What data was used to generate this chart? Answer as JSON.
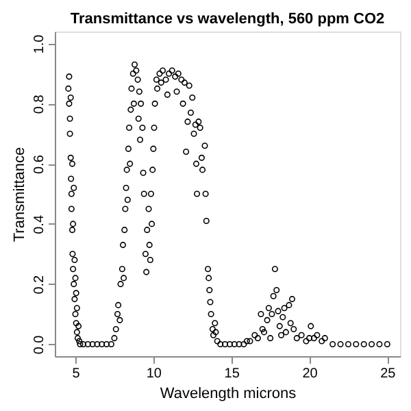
{
  "chart_data": {
    "type": "scatter",
    "title": "Transmittance vs wavelength, 560 ppm CO2",
    "xlabel": "Wavelength microns",
    "ylabel": "Transmittance",
    "x": [
      4.55,
      4.6,
      4.6,
      4.65,
      4.65,
      4.7,
      4.7,
      4.72,
      4.75,
      4.75,
      4.8,
      4.8,
      4.82,
      4.85,
      4.85,
      4.9,
      4.9,
      4.95,
      4.95,
      5.0,
      5.0,
      5.05,
      5.05,
      5.1,
      5.1,
      5.15,
      5.2,
      5.25,
      5.3,
      5.5,
      5.8,
      6.1,
      6.4,
      6.7,
      7.0,
      7.3,
      7.5,
      7.6,
      7.7,
      7.75,
      7.85,
      7.9,
      8.0,
      8.05,
      8.1,
      8.15,
      8.2,
      8.25,
      8.3,
      8.35,
      8.4,
      8.45,
      8.5,
      8.55,
      8.6,
      8.7,
      8.75,
      8.8,
      8.9,
      9.0,
      9.05,
      9.1,
      9.15,
      9.2,
      9.3,
      9.35,
      9.4,
      9.5,
      9.55,
      9.6,
      9.7,
      9.75,
      9.8,
      9.85,
      9.9,
      9.95,
      10.0,
      10.05,
      10.1,
      10.2,
      10.25,
      10.4,
      10.5,
      10.6,
      10.8,
      10.9,
      11.0,
      11.2,
      11.4,
      11.5,
      11.6,
      11.8,
      11.9,
      12.0,
      12.1,
      12.2,
      12.3,
      12.4,
      12.5,
      12.6,
      12.7,
      12.75,
      12.8,
      12.9,
      13.0,
      13.1,
      13.15,
      13.3,
      13.35,
      13.4,
      13.5,
      13.55,
      13.6,
      13.65,
      13.7,
      13.8,
      13.85,
      13.95,
      14.0,
      14.1,
      14.3,
      14.6,
      14.9,
      15.2,
      15.5,
      15.8,
      16.0,
      16.2,
      16.5,
      16.7,
      16.9,
      17.0,
      17.1,
      17.3,
      17.4,
      17.5,
      17.6,
      17.7,
      17.8,
      17.9,
      18.0,
      18.1,
      18.2,
      18.3,
      18.4,
      18.5,
      18.7,
      18.8,
      18.9,
      19.0,
      19.2,
      19.5,
      19.8,
      20.0,
      20.1,
      20.3,
      20.5,
      20.8,
      21.0,
      21.5,
      22.0,
      22.5,
      23.0,
      23.5,
      24.0,
      24.5,
      25.0
    ],
    "values": [
      0.85,
      0.89,
      0.8,
      0.75,
      0.7,
      0.82,
      0.62,
      0.55,
      0.5,
      0.45,
      0.38,
      0.6,
      0.3,
      0.25,
      0.4,
      0.2,
      0.52,
      0.15,
      0.28,
      0.1,
      0.22,
      0.07,
      0.17,
      0.04,
      0.12,
      0.02,
      0.06,
      0.01,
      0.0,
      0.0,
      0.0,
      0.0,
      0.0,
      0.0,
      0.0,
      0.0,
      0.02,
      0.05,
      0.1,
      0.13,
      0.08,
      0.2,
      0.25,
      0.33,
      0.22,
      0.38,
      0.45,
      0.52,
      0.58,
      0.48,
      0.65,
      0.72,
      0.6,
      0.78,
      0.85,
      0.9,
      0.8,
      0.93,
      0.91,
      0.88,
      0.75,
      0.84,
      0.68,
      0.8,
      0.72,
      0.57,
      0.5,
      0.3,
      0.24,
      0.38,
      0.45,
      0.33,
      0.28,
      0.5,
      0.4,
      0.58,
      0.65,
      0.72,
      0.8,
      0.88,
      0.85,
      0.9,
      0.87,
      0.91,
      0.88,
      0.83,
      0.9,
      0.91,
      0.89,
      0.84,
      0.9,
      0.88,
      0.8,
      0.87,
      0.64,
      0.74,
      0.86,
      0.77,
      0.82,
      0.7,
      0.73,
      0.6,
      0.5,
      0.74,
      0.72,
      0.62,
      0.58,
      0.66,
      0.5,
      0.41,
      0.25,
      0.22,
      0.18,
      0.14,
      0.1,
      0.05,
      0.03,
      0.07,
      0.04,
      0.01,
      0.0,
      0.0,
      0.0,
      0.0,
      0.0,
      0.0,
      0.01,
      0.01,
      0.03,
      0.02,
      0.1,
      0.05,
      0.04,
      0.08,
      0.12,
      0.02,
      0.1,
      0.16,
      0.25,
      0.18,
      0.11,
      0.06,
      0.03,
      0.09,
      0.12,
      0.04,
      0.13,
      0.07,
      0.15,
      0.05,
      0.02,
      0.03,
      0.01,
      0.02,
      0.06,
      0.02,
      0.03,
      0.01,
      0.02,
      0.0,
      0.0,
      0.0,
      0.0,
      0.0,
      0.0,
      0.0,
      0.0
    ],
    "color": "#000000",
    "marker": "circle",
    "grid": false,
    "xlim": [
      3.68,
      25.82
    ],
    "ylim": [
      -0.04,
      1.04
    ],
    "xticks": [
      5,
      10,
      15,
      20,
      25
    ],
    "yticks": [
      {
        "value": 0,
        "label": "0.0"
      },
      {
        "value": 0.2,
        "label": "0.2"
      },
      {
        "value": 0.4,
        "label": "0.4"
      },
      {
        "value": 0.6,
        "label": "0.6"
      },
      {
        "value": 0.8,
        "label": "0.8"
      },
      {
        "value": 1,
        "label": "1.0"
      }
    ]
  }
}
